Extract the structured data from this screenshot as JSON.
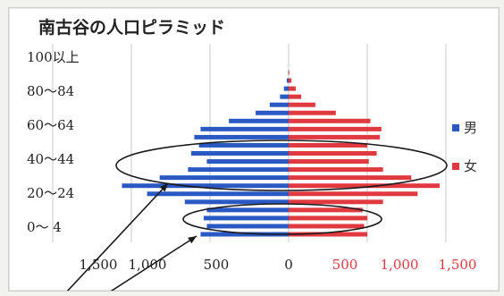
{
  "chart_data": {
    "type": "bar",
    "orientation": "horizontal-pyramid",
    "title": "南古谷の人口ピラミッド",
    "y_tick_labels": [
      "100以上",
      "80〜84",
      "60〜64",
      "40〜44",
      "20〜24",
      "0〜 4"
    ],
    "x_tick_labels": [
      "1,500",
      "1,000",
      "500",
      "0",
      "500",
      "1,000",
      "1,500"
    ],
    "xlim": [
      -1500,
      1500
    ],
    "grid": true,
    "legend_position": "right",
    "series": [
      {
        "name": "男",
        "color": "#2b59c3",
        "values": [
          2,
          12,
          30,
          55,
          120,
          210,
          380,
          560,
          600,
          570,
          620,
          520,
          640,
          820,
          1060,
          900,
          660,
          520,
          540,
          520,
          560
        ]
      },
      {
        "name": "女",
        "color": "#e0393f",
        "values": [
          4,
          18,
          45,
          80,
          170,
          300,
          520,
          590,
          580,
          500,
          560,
          510,
          600,
          780,
          960,
          820,
          600,
          470,
          500,
          480,
          500
        ]
      }
    ],
    "age_order": "top-to-bottom"
  },
  "colors": {
    "male": "#2b59c3",
    "female": "#e0393f",
    "annotation": "#1a1a1a"
  }
}
